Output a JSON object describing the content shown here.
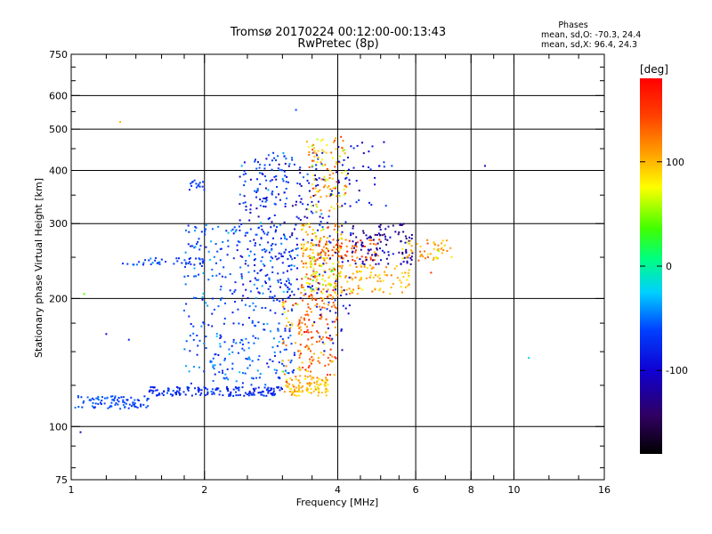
{
  "chart_data": {
    "type": "scatter",
    "title": "Tromsø 20170224 00:12:00-00:13:43",
    "subtitle": "RwPretec (8p)",
    "xlabel": "Frequency [MHz]",
    "ylabel": "Stationary phase Virtual Height [km]",
    "x_scale": "log",
    "y_scale": "log",
    "xlim": [
      1,
      16
    ],
    "ylim": [
      75,
      750
    ],
    "x_ticks": [
      1,
      2,
      4,
      6,
      8,
      10,
      16
    ],
    "x_tick_labels": [
      "1",
      "2",
      "4",
      "6",
      "8",
      "10",
      "16"
    ],
    "y_ticks": [
      75,
      100,
      200,
      300,
      400,
      500,
      600,
      750
    ],
    "y_tick_labels": [
      "75",
      "100",
      "200",
      "300",
      "400",
      "500",
      "600",
      "750"
    ],
    "x_minor_ticks": [
      1.2,
      1.4,
      1.6,
      1.8,
      2.5,
      3,
      3.5,
      4.5,
      5,
      5.5,
      7,
      9,
      12,
      14
    ],
    "y_minor_ticks": [
      80,
      90,
      125,
      150,
      175,
      250,
      350,
      450,
      550,
      650,
      700
    ],
    "x_grid": [
      2,
      4,
      6,
      8,
      10
    ],
    "y_grid": [
      100,
      200,
      300,
      400,
      500,
      600
    ],
    "stats_title": "Phases",
    "stats_lines": [
      "mean, sd,O: -70.3, 24.4",
      "mean, sd,X:  96.4, 24.3"
    ],
    "colorbar": {
      "unit_label": "[deg]",
      "range": [
        -180,
        180
      ],
      "ticks": [
        100,
        0,
        -100
      ],
      "tick_labels": [
        "100",
        "0",
        "-100"
      ]
    },
    "clusters": [
      {
        "x": [
          1.02,
          1.5
        ],
        "y": [
          110,
          118
        ],
        "n": 90,
        "phase": -60,
        "sd": 8
      },
      {
        "x": [
          1.5,
          3.0
        ],
        "y": [
          118,
          124
        ],
        "n": 160,
        "phase": -75,
        "sd": 10
      },
      {
        "x": [
          1.3,
          2.0
        ],
        "y": [
          240,
          250
        ],
        "n": 40,
        "phase": -65,
        "sd": 10
      },
      {
        "x": [
          1.85,
          2.0
        ],
        "y": [
          360,
          380
        ],
        "n": 15,
        "phase": -65,
        "sd": 6
      },
      {
        "x": [
          1.8,
          3.2
        ],
        "y": [
          125,
          300
        ],
        "n": 380,
        "phase": -62,
        "sd": 16
      },
      {
        "x": [
          2.4,
          3.7
        ],
        "y": [
          200,
          440
        ],
        "n": 230,
        "phase": -80,
        "sd": 22
      },
      {
        "x": [
          2.6,
          3.1
        ],
        "y": [
          330,
          440
        ],
        "n": 35,
        "phase": -60,
        "sd": 10
      },
      {
        "x": [
          3.05,
          3.8
        ],
        "y": [
          118,
          130
        ],
        "n": 90,
        "phase": 100,
        "sd": 15
      },
      {
        "x": [
          3.25,
          4.0
        ],
        "y": [
          130,
          205
        ],
        "n": 150,
        "phase": 130,
        "sd": 22
      },
      {
        "x": [
          3.0,
          3.3
        ],
        "y": [
          120,
          200
        ],
        "n": 40,
        "phase": 110,
        "sd": 25
      },
      {
        "x": [
          3.3,
          4.1
        ],
        "y": [
          205,
          300
        ],
        "n": 200,
        "phase": 100,
        "sd": 30
      },
      {
        "x": [
          3.4,
          4.2
        ],
        "y": [
          320,
          480
        ],
        "n": 110,
        "phase": 95,
        "sd": 30
      },
      {
        "x": [
          4.0,
          5.8
        ],
        "y": [
          205,
          240
        ],
        "n": 90,
        "phase": 100,
        "sd": 15
      },
      {
        "x": [
          3.6,
          5.0
        ],
        "y": [
          245,
          275
        ],
        "n": 70,
        "phase": 140,
        "sd": 14
      },
      {
        "x": [
          4.3,
          5.9
        ],
        "y": [
          240,
          300
        ],
        "n": 110,
        "phase": -120,
        "sd": 14
      },
      {
        "x": [
          5.6,
          7.3
        ],
        "y": [
          245,
          275
        ],
        "n": 50,
        "phase": 105,
        "sd": 18
      },
      {
        "x": [
          4.0,
          5.2
        ],
        "y": [
          330,
          470
        ],
        "n": 35,
        "phase": -90,
        "sd": 15
      },
      {
        "x": [
          3.5,
          4.3
        ],
        "y": [
          150,
          440
        ],
        "n": 70,
        "phase": -95,
        "sd": 14
      }
    ],
    "outliers": [
      {
        "x": 1.29,
        "y": 520,
        "phase": 100
      },
      {
        "x": 3.22,
        "y": 555,
        "phase": -60
      },
      {
        "x": 1.07,
        "y": 205,
        "phase": 40
      },
      {
        "x": 1.05,
        "y": 97,
        "phase": -110
      },
      {
        "x": 1.2,
        "y": 165,
        "phase": -100
      },
      {
        "x": 1.35,
        "y": 160,
        "phase": -80
      },
      {
        "x": 8.6,
        "y": 410,
        "phase": -110
      },
      {
        "x": 10.8,
        "y": 145,
        "phase": -20
      },
      {
        "x": 5.3,
        "y": 410,
        "phase": -60
      },
      {
        "x": 6.5,
        "y": 230,
        "phase": 150
      }
    ]
  }
}
